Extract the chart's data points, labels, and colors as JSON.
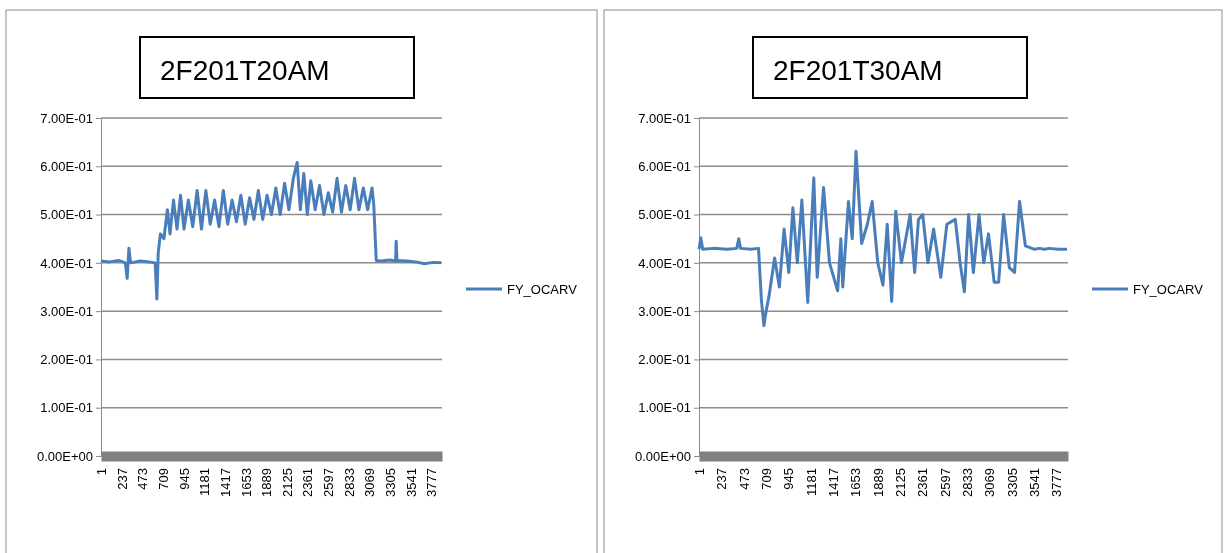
{
  "chart_data": [
    {
      "type": "line",
      "title": "2F201T20AM",
      "xlim": [
        1,
        3900
      ],
      "xticks": [
        1,
        237,
        473,
        709,
        945,
        1181,
        1417,
        1653,
        1889,
        2125,
        2361,
        2597,
        2833,
        3069,
        3305,
        3541,
        3777
      ],
      "ylim": [
        0,
        0.7
      ],
      "yticks": [
        {
          "value": 0,
          "label": "0.00E+00"
        },
        {
          "value": 0.1,
          "label": "1.00E-01"
        },
        {
          "value": 0.2,
          "label": "2.00E-01"
        },
        {
          "value": 0.3,
          "label": "3.00E-01"
        },
        {
          "value": 0.4,
          "label": "4.00E-01"
        },
        {
          "value": 0.5,
          "label": "5.00E-01"
        },
        {
          "value": 0.6,
          "label": "6.00E-01"
        },
        {
          "value": 0.7,
          "label": "7.00E-01"
        }
      ],
      "grid": "y",
      "legend": "right",
      "series": [
        {
          "name": "FY_OCARV",
          "color": "#4a7ebb",
          "x": [
            1,
            100,
            200,
            280,
            300,
            320,
            340,
            450,
            550,
            620,
            640,
            655,
            680,
            720,
            760,
            790,
            830,
            870,
            910,
            950,
            1000,
            1050,
            1100,
            1150,
            1200,
            1250,
            1300,
            1350,
            1400,
            1450,
            1500,
            1550,
            1600,
            1650,
            1700,
            1750,
            1800,
            1850,
            1900,
            1950,
            2000,
            2050,
            2100,
            2150,
            2200,
            2244,
            2280,
            2320,
            2360,
            2400,
            2450,
            2500,
            2550,
            2600,
            2650,
            2700,
            2750,
            2800,
            2850,
            2900,
            2950,
            3000,
            3050,
            3100,
            3120,
            3148,
            3200,
            3300,
            3370,
            3376,
            3385,
            3500,
            3600,
            3700,
            3800,
            3890
          ],
          "values": [
            0.404,
            0.402,
            0.405,
            0.4,
            0.368,
            0.43,
            0.4,
            0.404,
            0.402,
            0.4,
            0.325,
            0.42,
            0.46,
            0.45,
            0.51,
            0.46,
            0.53,
            0.47,
            0.54,
            0.47,
            0.53,
            0.475,
            0.55,
            0.47,
            0.55,
            0.48,
            0.53,
            0.475,
            0.55,
            0.48,
            0.53,
            0.485,
            0.54,
            0.48,
            0.535,
            0.49,
            0.55,
            0.49,
            0.54,
            0.5,
            0.555,
            0.5,
            0.565,
            0.51,
            0.575,
            0.608,
            0.51,
            0.585,
            0.5,
            0.57,
            0.51,
            0.56,
            0.5,
            0.545,
            0.505,
            0.575,
            0.505,
            0.56,
            0.51,
            0.575,
            0.51,
            0.555,
            0.51,
            0.555,
            0.52,
            0.405,
            0.404,
            0.406,
            0.404,
            0.445,
            0.405,
            0.404,
            0.402,
            0.398,
            0.401,
            0.4
          ]
        }
      ]
    },
    {
      "type": "line",
      "title": "2F201T30AM",
      "xlim": [
        1,
        3900
      ],
      "xticks": [
        1,
        237,
        473,
        709,
        945,
        1181,
        1417,
        1653,
        1889,
        2125,
        2361,
        2597,
        2833,
        3069,
        3305,
        3541,
        3777
      ],
      "ylim": [
        0,
        0.7
      ],
      "yticks": [
        {
          "value": 0,
          "label": "0.00E+00"
        },
        {
          "value": 0.1,
          "label": "1.00E-01"
        },
        {
          "value": 0.2,
          "label": "2.00E-01"
        },
        {
          "value": 0.3,
          "label": "3.00E-01"
        },
        {
          "value": 0.4,
          "label": "4.00E-01"
        },
        {
          "value": 0.5,
          "label": "5.00E-01"
        },
        {
          "value": 0.6,
          "label": "6.00E-01"
        },
        {
          "value": 0.7,
          "label": "7.00E-01"
        }
      ],
      "grid": "y",
      "legend": "right",
      "series": [
        {
          "name": "FY_OCARV",
          "color": "#4a7ebb",
          "x": [
            1,
            20,
            40,
            150,
            300,
            400,
            421,
            440,
            550,
            630,
            660,
            687,
            710,
            740,
            800,
            850,
            900,
            950,
            993,
            1040,
            1088,
            1150,
            1214,
            1250,
            1317,
            1380,
            1466,
            1500,
            1520,
            1580,
            1620,
            1660,
            1720,
            1780,
            1831,
            1890,
            1945,
            1990,
            2037,
            2080,
            2140,
            2232,
            2280,
            2320,
            2365,
            2420,
            2480,
            2556,
            2620,
            2709,
            2760,
            2805,
            2850,
            2900,
            2960,
            3010,
            3060,
            3120,
            3167,
            3220,
            3280,
            3335,
            3388,
            3450,
            3545,
            3600,
            3650,
            3700,
            3800,
            3890
          ],
          "values": [
            0.428,
            0.452,
            0.428,
            0.43,
            0.428,
            0.43,
            0.45,
            0.43,
            0.428,
            0.43,
            0.324,
            0.27,
            0.3,
            0.33,
            0.41,
            0.35,
            0.47,
            0.38,
            0.514,
            0.4,
            0.53,
            0.318,
            0.576,
            0.37,
            0.556,
            0.4,
            0.342,
            0.45,
            0.35,
            0.527,
            0.45,
            0.631,
            0.44,
            0.48,
            0.527,
            0.4,
            0.354,
            0.48,
            0.32,
            0.507,
            0.4,
            0.5,
            0.38,
            0.49,
            0.5,
            0.4,
            0.47,
            0.37,
            0.48,
            0.49,
            0.4,
            0.34,
            0.5,
            0.38,
            0.5,
            0.4,
            0.46,
            0.36,
            0.36,
            0.5,
            0.39,
            0.38,
            0.527,
            0.435,
            0.428,
            0.43,
            0.428,
            0.43,
            0.428,
            0.428
          ]
        }
      ]
    }
  ]
}
